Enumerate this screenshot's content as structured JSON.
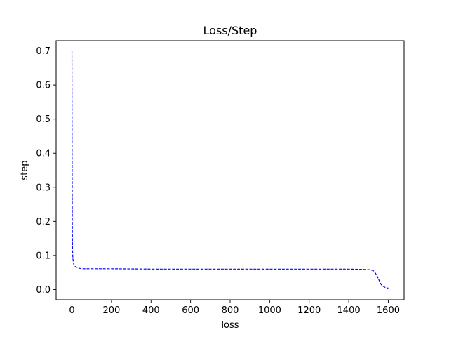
{
  "chart_data": {
    "type": "line",
    "title": "Loss/Step",
    "xlabel": "loss",
    "ylabel": "step",
    "xlim": [
      -80,
      1680
    ],
    "ylim": [
      -0.03,
      0.73
    ],
    "xticks": [
      0,
      200,
      400,
      600,
      800,
      1000,
      1200,
      1400,
      1600
    ],
    "xtick_labels": [
      "0",
      "200",
      "400",
      "600",
      "800",
      "1000",
      "1200",
      "1400",
      "1600"
    ],
    "yticks": [
      0.0,
      0.1,
      0.2,
      0.3,
      0.4,
      0.5,
      0.6,
      0.7
    ],
    "ytick_labels": [
      "0.0",
      "0.1",
      "0.2",
      "0.3",
      "0.4",
      "0.5",
      "0.6",
      "0.7"
    ],
    "grid": false,
    "line_style": "dashed",
    "series": [
      {
        "color": "#0000ff",
        "x": [
          0,
          1,
          2,
          3,
          4,
          5,
          7,
          10,
          15,
          20,
          30,
          40,
          60,
          100,
          200,
          400,
          600,
          800,
          1000,
          1200,
          1400,
          1480,
          1510,
          1525,
          1535,
          1545,
          1555,
          1565,
          1575,
          1585,
          1600
        ],
        "y": [
          0.7,
          0.4,
          0.2,
          0.12,
          0.1,
          0.09,
          0.08,
          0.072,
          0.068,
          0.066,
          0.064,
          0.062,
          0.061,
          0.061,
          0.061,
          0.06,
          0.06,
          0.06,
          0.06,
          0.06,
          0.06,
          0.059,
          0.058,
          0.055,
          0.048,
          0.038,
          0.025,
          0.014,
          0.009,
          0.006,
          0.004
        ]
      }
    ]
  }
}
